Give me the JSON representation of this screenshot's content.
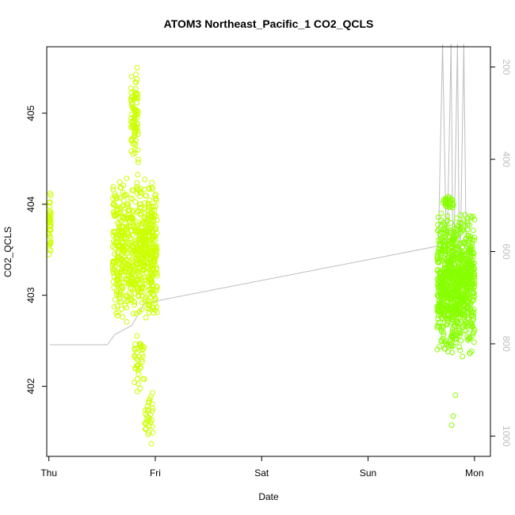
{
  "chart_data": {
    "type": "scatter",
    "title": "ATOM3 Northeast_Pacific_1 CO2_QCLS",
    "xlabel": "Date",
    "ylabel": "CO2_QCLS",
    "x_ticks": [
      "Thu",
      "Fri",
      "Sat",
      "Sun",
      "Mon"
    ],
    "xlim": [
      -0.02,
      4.15
    ],
    "ylim": [
      401.23,
      405.73
    ],
    "y_ticks": [
      402,
      403,
      404,
      405
    ],
    "y2_ticks": [
      200,
      400,
      600,
      800,
      1000
    ],
    "y2lim": [
      1044,
      156
    ],
    "grid": false,
    "legend": "none",
    "colors": {
      "points_early": "#ccff00",
      "points_late": "#88ff00",
      "altitude_line": "#bdbdbd",
      "axis": "#000000"
    },
    "altitude_trace": [
      [
        0.01,
        802
      ],
      [
        0.55,
        802
      ],
      [
        0.62,
        780
      ],
      [
        0.78,
        760
      ],
      [
        0.9,
        712
      ],
      [
        3.66,
        588
      ],
      [
        3.7,
        150
      ],
      [
        3.74,
        640
      ],
      [
        3.78,
        150
      ],
      [
        3.8,
        690
      ],
      [
        3.84,
        150
      ],
      [
        3.86,
        700
      ],
      [
        3.9,
        150
      ],
      [
        3.93,
        760
      ],
      [
        3.95,
        755
      ],
      [
        3.95,
        590
      ]
    ],
    "series": [
      {
        "clusters": [
          {
            "x_range": [
              0.0,
              0.02
            ],
            "y_range": [
              403.3,
              404.2
            ],
            "n": 40
          },
          {
            "x_range": [
              0.6,
              1.02
            ],
            "y_range": [
              402.7,
              404.3
            ],
            "n": 700
          },
          {
            "x_range": [
              0.77,
              0.84
            ],
            "y_range": [
              404.3,
              405.55
            ],
            "n": 90
          },
          {
            "x_range": [
              0.8,
              0.9
            ],
            "y_range": [
              401.9,
              402.7
            ],
            "n": 40
          },
          {
            "x_range": [
              0.9,
              0.98
            ],
            "y_range": [
              401.35,
              401.95
            ],
            "n": 30
          }
        ]
      },
      {
        "clusters": [
          {
            "x_range": [
              3.65,
              4.0
            ],
            "y_range": [
              402.3,
              403.95
            ],
            "n": 900
          },
          {
            "x_range": [
              3.7,
              3.8
            ],
            "y_range": [
              403.95,
              404.1
            ],
            "n": 30
          },
          {
            "x_range": [
              3.78,
              3.84
            ],
            "y_range": [
              401.4,
              402.15
            ],
            "n": 3
          }
        ]
      }
    ]
  }
}
